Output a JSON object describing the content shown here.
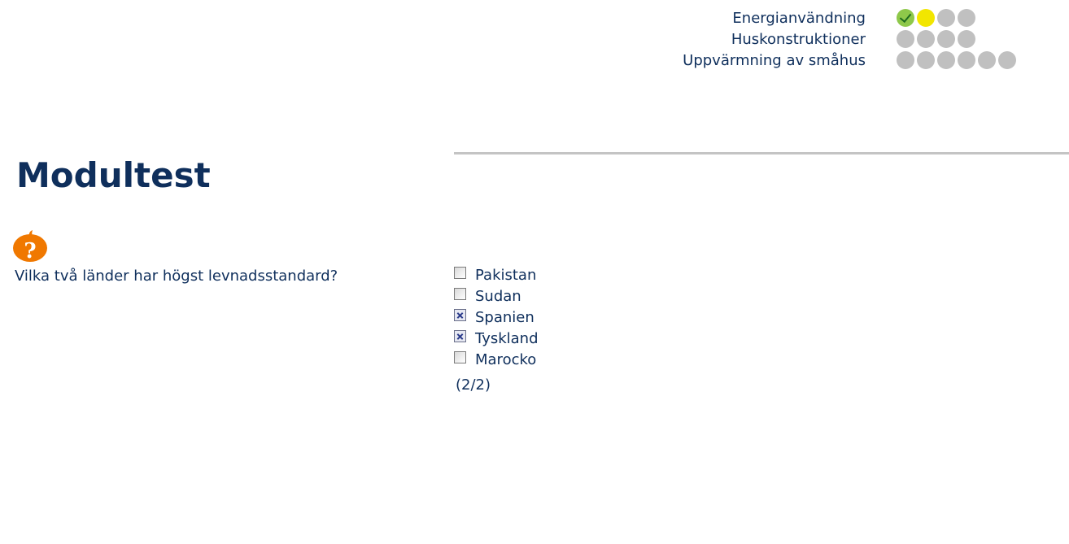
{
  "progress": {
    "modules": [
      {
        "name": "Energianvändning",
        "steps": [
          "done",
          "current",
          "pending",
          "pending"
        ]
      },
      {
        "name": "Huskonstruktioner",
        "steps": [
          "pending",
          "pending",
          "pending",
          "pending"
        ]
      },
      {
        "name": "Uppvärmning av småhus",
        "steps": [
          "pending",
          "pending",
          "pending",
          "pending",
          "pending",
          "pending"
        ]
      }
    ]
  },
  "page": {
    "title": "Modultest"
  },
  "question": {
    "icon": "question-pumpkin-icon",
    "text": "Vilka två länder har högst levnadsstandard?",
    "options": [
      {
        "label": "Pakistan",
        "checked": false
      },
      {
        "label": "Sudan",
        "checked": false
      },
      {
        "label": "Spanien",
        "checked": true
      },
      {
        "label": "Tyskland",
        "checked": true
      },
      {
        "label": "Marocko",
        "checked": false
      }
    ],
    "count": "(2/2)"
  },
  "colors": {
    "text": "#0f2f5c",
    "done": "#8ec84a",
    "current": "#f2e600",
    "pending": "#c0c0c0",
    "icon": "#f07800"
  }
}
